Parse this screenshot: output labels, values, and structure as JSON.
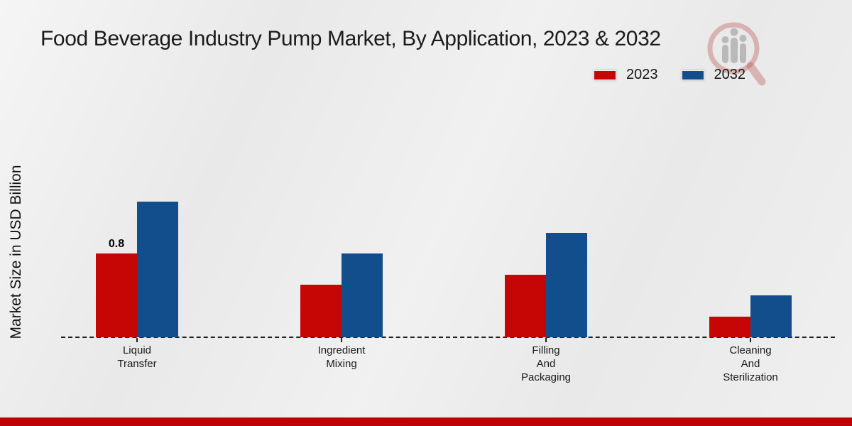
{
  "page": {
    "footer_color": "#bf0303"
  },
  "watermark": {
    "icon": "magnifier-barchart-logo",
    "ring_color": "rgba(186,74,74,0.35)",
    "bars_color": "rgba(168,168,168,0.75)"
  },
  "chart_data": {
    "type": "bar",
    "title": "Food Beverage Industry Pump Market, By Application, 2023 & 2032",
    "xlabel": "",
    "ylabel": "Market Size in USD Billion",
    "categories": [
      "Liquid Transfer",
      "Ingredient Mixing",
      "Filling And Packaging",
      "Cleaning And Sterilization"
    ],
    "category_display_lines": [
      [
        "Liquid",
        "Transfer"
      ],
      [
        "Ingredient",
        "Mixing"
      ],
      [
        "Filling",
        "And",
        "Packaging"
      ],
      [
        "Cleaning",
        "And",
        "Sterilization"
      ]
    ],
    "series": [
      {
        "name": "2023",
        "color": "#c60505",
        "values": [
          0.8,
          0.5,
          0.6,
          0.2
        ]
      },
      {
        "name": "2032",
        "color": "#114e8b",
        "values": [
          1.3,
          0.8,
          1.0,
          0.4
        ]
      }
    ],
    "data_labels": [
      {
        "series_index": 0,
        "category_index": 0,
        "text": "0.8"
      }
    ],
    "ylim": [
      0,
      1.4
    ],
    "grid": false,
    "y_axis_ticks_visible": false,
    "legend_position": "top-right",
    "baseline_style": "dashed"
  }
}
